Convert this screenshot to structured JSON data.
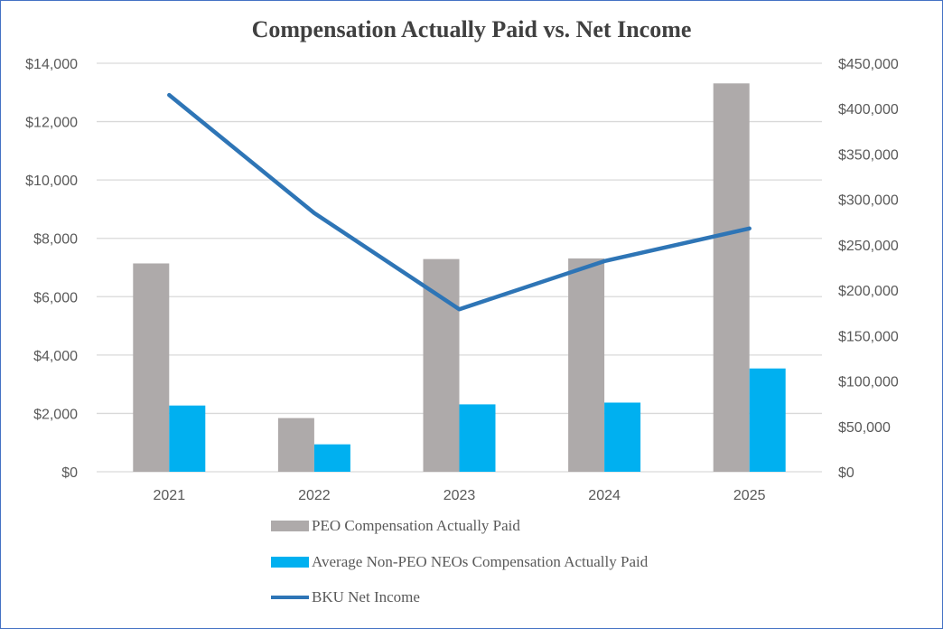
{
  "chart_data": {
    "type": "bar",
    "title": "Compensation Actually Paid vs. Net Income",
    "categories": [
      "2021",
      "2022",
      "2023",
      "2024",
      "2025"
    ],
    "y_left": {
      "ylim": [
        0,
        14000
      ],
      "ticks": [
        0,
        2000,
        4000,
        6000,
        8000,
        10000,
        12000,
        14000
      ],
      "tick_labels": [
        "$0",
        "$2,000",
        "$4,000",
        "$6,000",
        "$8,000",
        "$10,000",
        "$12,000",
        "$14,000"
      ]
    },
    "y_right": {
      "ylim": [
        0,
        450000
      ],
      "ticks": [
        0,
        50000,
        100000,
        150000,
        200000,
        250000,
        300000,
        350000,
        400000,
        450000
      ],
      "tick_labels": [
        "$0",
        "$50,000",
        "$100,000",
        "$150,000",
        "$200,000",
        "$250,000",
        "$300,000",
        "$350,000",
        "$400,000",
        "$450,000"
      ]
    },
    "series": [
      {
        "name": "PEO Compensation Actually Paid",
        "type": "bar",
        "axis": "left",
        "color": "#aeaaaa",
        "values": [
          7140,
          1840,
          7290,
          7310,
          13310
        ]
      },
      {
        "name": "Average Non-PEO NEOs Compensation Actually Paid",
        "type": "bar",
        "axis": "left",
        "color": "#00b0f0",
        "values": [
          2270,
          940,
          2310,
          2370,
          3540
        ]
      },
      {
        "name": "BKU Net Income",
        "type": "line",
        "axis": "right",
        "color": "#2e75b6",
        "values": [
          415000,
          285000,
          179000,
          232000,
          268000
        ]
      }
    ],
    "grid": true,
    "legend_position": "bottom"
  }
}
